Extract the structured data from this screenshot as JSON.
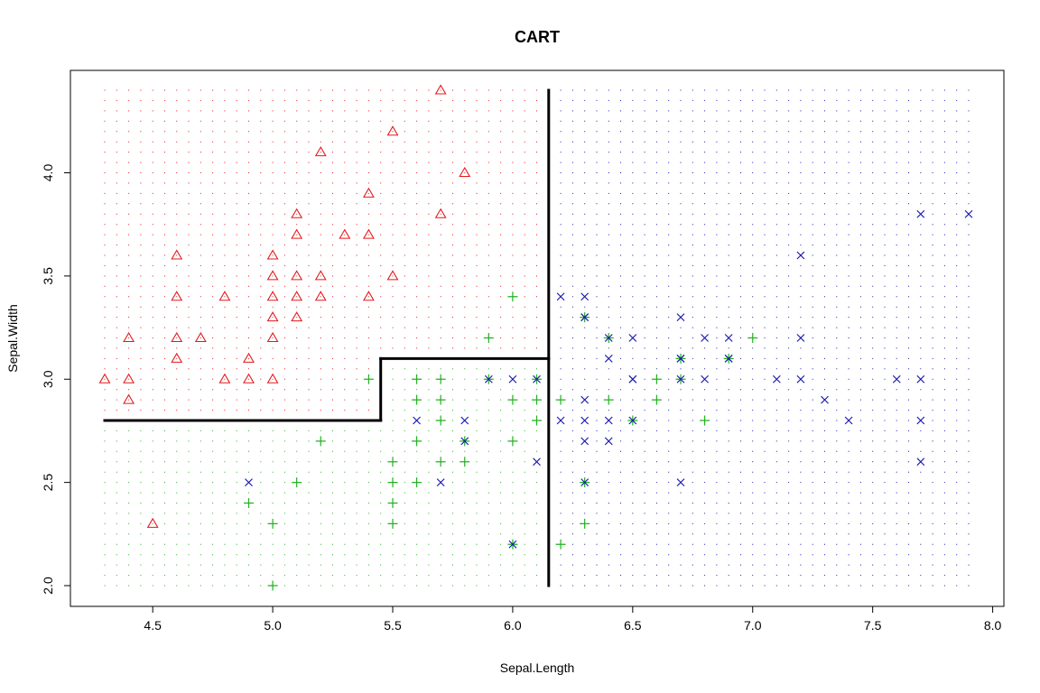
{
  "chart_data": {
    "type": "scatter",
    "title": "CART",
    "xlabel": "Sepal.Length",
    "ylabel": "Sepal.Width",
    "xlim": [
      4.3,
      7.9
    ],
    "ylim": [
      2.0,
      4.4
    ],
    "x_ticks": [
      "4.5",
      "5.0",
      "5.5",
      "6.0",
      "6.5",
      "7.0",
      "7.5",
      "8.0"
    ],
    "y_ticks": [
      "2.0",
      "2.5",
      "3.0",
      "3.5",
      "4.0"
    ],
    "grid": false,
    "legend": "none",
    "colors": {
      "class_1": "#e31a1c",
      "class_2": "#22b022",
      "class_3": "#1a1ab0",
      "boundary": "#000000",
      "frame": "#000000"
    },
    "background_grid": {
      "x_step": 0.05,
      "y_step": 0.05
    },
    "decision_regions": [
      {
        "class": "class_1",
        "rule": "x < 6.15 and (y >= 3.1 or (x < 5.45 and y >= 2.8))"
      },
      {
        "class": "class_2",
        "rule": "x < 6.15 and not class_1"
      },
      {
        "class": "class_3",
        "rule": "x >= 6.15"
      }
    ],
    "decision_boundary": [
      {
        "x": [
          4.3,
          5.45
        ],
        "y": [
          2.8,
          2.8
        ]
      },
      {
        "x": [
          5.45,
          5.45
        ],
        "y": [
          2.8,
          3.1
        ]
      },
      {
        "x": [
          5.45,
          6.15
        ],
        "y": [
          3.1,
          3.1
        ]
      },
      {
        "x": [
          6.15,
          6.15
        ],
        "y": [
          2.0,
          4.4
        ]
      }
    ],
    "series": [
      {
        "marker": "triangle",
        "color_key": "class_1",
        "points": [
          [
            5.1,
            3.5
          ],
          [
            4.9,
            3.0
          ],
          [
            4.7,
            3.2
          ],
          [
            4.6,
            3.1
          ],
          [
            5.0,
            3.6
          ],
          [
            5.4,
            3.9
          ],
          [
            4.6,
            3.4
          ],
          [
            5.0,
            3.4
          ],
          [
            4.4,
            2.9
          ],
          [
            4.9,
            3.1
          ],
          [
            5.4,
            3.7
          ],
          [
            4.8,
            3.4
          ],
          [
            4.8,
            3.0
          ],
          [
            4.3,
            3.0
          ],
          [
            5.8,
            4.0
          ],
          [
            5.7,
            4.4
          ],
          [
            5.1,
            3.8
          ],
          [
            5.7,
            3.8
          ],
          [
            5.4,
            3.4
          ],
          [
            5.1,
            3.7
          ],
          [
            4.6,
            3.6
          ],
          [
            5.0,
            3.0
          ],
          [
            5.2,
            3.5
          ],
          [
            5.2,
            3.4
          ],
          [
            5.5,
            4.2
          ],
          [
            5.2,
            4.1
          ],
          [
            5.5,
            3.5
          ],
          [
            4.4,
            3.0
          ],
          [
            5.0,
            3.5
          ],
          [
            4.5,
            2.3
          ],
          [
            4.4,
            3.2
          ],
          [
            5.1,
            3.3
          ],
          [
            5.0,
            3.3
          ],
          [
            5.0,
            3.2
          ],
          [
            5.3,
            3.7
          ],
          [
            4.6,
            3.2
          ],
          [
            5.1,
            3.4
          ]
        ]
      },
      {
        "marker": "plus",
        "color_key": "class_2",
        "points": [
          [
            5.9,
            3.0
          ],
          [
            6.0,
            3.4
          ],
          [
            6.3,
            3.3
          ],
          [
            6.4,
            3.2
          ],
          [
            6.9,
            3.1
          ],
          [
            7.0,
            3.2
          ],
          [
            6.7,
            3.1
          ],
          [
            6.1,
            3.0
          ],
          [
            6.2,
            2.9
          ],
          [
            6.1,
            2.8
          ],
          [
            5.7,
            2.8
          ],
          [
            5.6,
            2.9
          ],
          [
            5.6,
            3.0
          ],
          [
            5.7,
            3.0
          ],
          [
            5.7,
            2.9
          ],
          [
            5.9,
            3.2
          ],
          [
            6.6,
            3.0
          ],
          [
            6.6,
            2.9
          ],
          [
            6.0,
            2.9
          ],
          [
            6.4,
            2.9
          ],
          [
            6.1,
            2.9
          ],
          [
            6.7,
            3.0
          ],
          [
            6.8,
            2.8
          ],
          [
            6.5,
            2.8
          ],
          [
            5.8,
            2.7
          ],
          [
            5.6,
            2.7
          ],
          [
            5.8,
            2.6
          ],
          [
            6.0,
            2.7
          ],
          [
            6.3,
            2.5
          ],
          [
            5.5,
            2.6
          ],
          [
            5.6,
            2.5
          ],
          [
            5.5,
            2.5
          ],
          [
            5.1,
            2.5
          ],
          [
            5.0,
            2.3
          ],
          [
            5.5,
            2.4
          ],
          [
            4.9,
            2.4
          ],
          [
            5.2,
            2.7
          ],
          [
            5.7,
            2.6
          ],
          [
            6.3,
            2.3
          ],
          [
            6.0,
            2.2
          ],
          [
            6.2,
            2.2
          ],
          [
            5.0,
            2.0
          ],
          [
            5.5,
            2.3
          ],
          [
            5.4,
            3.0
          ]
        ]
      },
      {
        "marker": "cross",
        "color_key": "class_3",
        "points": [
          [
            6.3,
            3.3
          ],
          [
            7.1,
            3.0
          ],
          [
            6.5,
            3.0
          ],
          [
            7.6,
            3.0
          ],
          [
            7.3,
            2.9
          ],
          [
            7.2,
            3.6
          ],
          [
            6.5,
            3.2
          ],
          [
            6.4,
            2.7
          ],
          [
            6.8,
            3.0
          ],
          [
            5.8,
            2.8
          ],
          [
            6.4,
            3.2
          ],
          [
            6.5,
            3.0
          ],
          [
            7.7,
            3.8
          ],
          [
            7.7,
            2.6
          ],
          [
            6.0,
            2.2
          ],
          [
            6.9,
            3.2
          ],
          [
            5.6,
            2.8
          ],
          [
            7.7,
            2.8
          ],
          [
            6.3,
            2.7
          ],
          [
            6.7,
            3.3
          ],
          [
            7.2,
            3.2
          ],
          [
            6.2,
            2.8
          ],
          [
            6.1,
            3.0
          ],
          [
            6.4,
            2.8
          ],
          [
            7.2,
            3.0
          ],
          [
            7.4,
            2.8
          ],
          [
            7.9,
            3.8
          ],
          [
            6.3,
            2.8
          ],
          [
            6.1,
            2.6
          ],
          [
            7.7,
            3.0
          ],
          [
            6.3,
            3.4
          ],
          [
            6.4,
            3.1
          ],
          [
            6.0,
            3.0
          ],
          [
            6.9,
            3.1
          ],
          [
            6.7,
            3.1
          ],
          [
            6.8,
            3.2
          ],
          [
            6.7,
            3.0
          ],
          [
            6.3,
            2.5
          ],
          [
            6.2,
            3.4
          ],
          [
            5.9,
            3.0
          ],
          [
            4.9,
            2.5
          ],
          [
            5.7,
            2.5
          ],
          [
            5.8,
            2.7
          ],
          [
            6.7,
            2.5
          ],
          [
            6.3,
            2.9
          ],
          [
            6.5,
            2.8
          ],
          [
            6.3,
            3.3
          ],
          [
            6.7,
            3.1
          ],
          [
            6.9,
            3.1
          ]
        ]
      }
    ]
  }
}
